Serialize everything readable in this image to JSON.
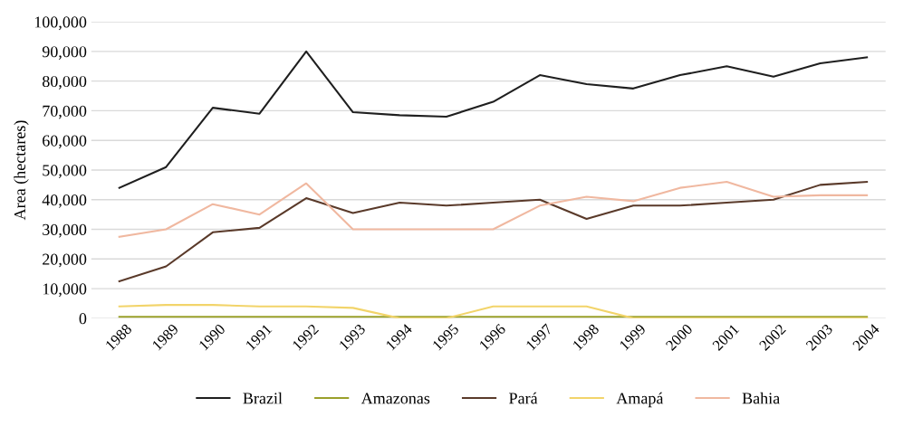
{
  "chart_data": {
    "type": "line",
    "ylabel": "Area (hectares)",
    "categories": [
      "1988",
      "1989",
      "1990",
      "1991",
      "1992",
      "1993",
      "1994",
      "1995",
      "1996",
      "1997",
      "1998",
      "1999",
      "2000",
      "2001",
      "2002",
      "2003",
      "2004"
    ],
    "series": [
      {
        "name": "Brazil",
        "color": "#1f1f1f",
        "values": [
          44000,
          51000,
          71000,
          69000,
          90000,
          69500,
          68500,
          68000,
          73000,
          82000,
          79000,
          77500,
          82000,
          85000,
          81500,
          86000,
          88000
        ]
      },
      {
        "name": "Amazonas",
        "color": "#9aa02a",
        "values": [
          500,
          500,
          500,
          500,
          500,
          500,
          500,
          500,
          500,
          500,
          500,
          500,
          500,
          500,
          500,
          500,
          500
        ]
      },
      {
        "name": "Pará",
        "color": "#5a3a2a",
        "values": [
          12500,
          17500,
          29000,
          30500,
          40500,
          35500,
          39000,
          38000,
          39000,
          40000,
          33500,
          38000,
          38000,
          39000,
          40000,
          45000,
          46000
        ]
      },
      {
        "name": "Amapá",
        "color": "#f2d46a",
        "values": [
          4000,
          4500,
          4500,
          4000,
          4000,
          3500,
          0,
          0,
          4000,
          4000,
          4000,
          0,
          0,
          0,
          0,
          0,
          0
        ]
      },
      {
        "name": "Bahia",
        "color": "#f0b8a0",
        "values": [
          27500,
          30000,
          38500,
          35000,
          45500,
          30000,
          30000,
          30000,
          30000,
          38000,
          41000,
          39500,
          44000,
          46000,
          41000,
          41500,
          41500
        ]
      }
    ],
    "ylim": [
      0,
      100000
    ],
    "yticks": [
      {
        "value": 0,
        "label": "0"
      },
      {
        "value": 10000,
        "label": "10,000"
      },
      {
        "value": 20000,
        "label": "20,000"
      },
      {
        "value": 30000,
        "label": "30,000"
      },
      {
        "value": 40000,
        "label": "40,000"
      },
      {
        "value": 50000,
        "label": "50,000"
      },
      {
        "value": 60000,
        "label": "60,000"
      },
      {
        "value": 70000,
        "label": "70,000"
      },
      {
        "value": 80000,
        "label": "80,000"
      },
      {
        "value": 90000,
        "label": "90,000"
      },
      {
        "value": 100000,
        "label": "100,000"
      }
    ],
    "grid": "y",
    "legend": "bottom",
    "line_style": "solid",
    "marker": "none"
  }
}
